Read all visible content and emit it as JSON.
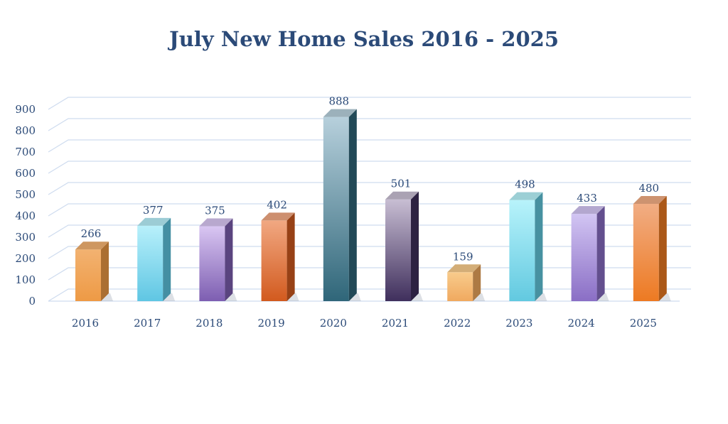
{
  "chart_data": {
    "type": "bar",
    "title": "July New Home Sales 2016 - 2025",
    "xlabel": "",
    "ylabel": "",
    "categories": [
      "2016",
      "2017",
      "2018",
      "2019",
      "2020",
      "2021",
      "2022",
      "2023",
      "2024",
      "2025"
    ],
    "values": [
      266,
      377,
      375,
      402,
      888,
      501,
      159,
      498,
      433,
      480
    ],
    "ylim": [
      0,
      900
    ],
    "yticks": [
      0,
      100,
      200,
      300,
      400,
      500,
      600,
      700,
      800,
      900
    ],
    "grid": true,
    "legend": "none",
    "bar_colors": [
      {
        "top": "#f2b271",
        "bottom": "#ee9a45"
      },
      {
        "top": "#b8f0fb",
        "bottom": "#5fc6e3"
      },
      {
        "top": "#d9c6f2",
        "bottom": "#7d5eb1"
      },
      {
        "top": "#f1a882",
        "bottom": "#d25a1e"
      },
      {
        "top": "#b7d0dc",
        "bottom": "#2f6679"
      },
      {
        "top": "#c8bed3",
        "bottom": "#3f2f5c"
      },
      {
        "top": "#f8cb8c",
        "bottom": "#f0a95f"
      },
      {
        "top": "#b8f3fb",
        "bottom": "#62c9e0"
      },
      {
        "top": "#d2c5f3",
        "bottom": "#8a6ec5"
      },
      {
        "top": "#f1ad84",
        "bottom": "#ed7a22"
      }
    ]
  }
}
